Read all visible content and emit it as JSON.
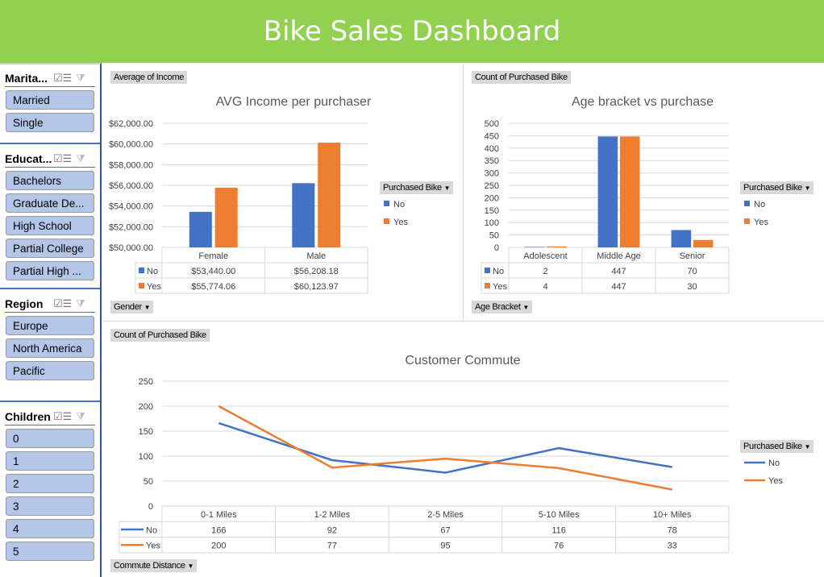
{
  "header": {
    "title": "Bike Sales Dashboard"
  },
  "slicers": [
    {
      "title": "Marita...",
      "items": [
        "Married",
        "Single"
      ]
    },
    {
      "title": "Educat...",
      "items": [
        "Bachelors",
        "Graduate De...",
        "High School",
        "Partial College",
        "Partial High ..."
      ]
    },
    {
      "title": "Region",
      "items": [
        "Europe",
        "North America",
        "Pacific"
      ]
    },
    {
      "title": "Children",
      "items": [
        "0",
        "1",
        "2",
        "3",
        "4",
        "5"
      ]
    }
  ],
  "icons": {
    "multiselect": "multi-select-icon",
    "clear_filter": "clear-filter-icon",
    "dropdown": "dropdown-arrow-icon"
  },
  "colors": {
    "no": "#4472C4",
    "yes": "#ED7D31",
    "header": "#92D050"
  },
  "chart_data": [
    {
      "type": "bar",
      "title": "AVG Income per purchaser",
      "value_field": "Average of Income",
      "axis_field": "Gender",
      "legend_field": "Purchased Bike",
      "categories": [
        "Female",
        "Male"
      ],
      "series": [
        {
          "name": "No",
          "values": [
            53440.0,
            56208.18
          ],
          "labels": [
            "$53,440.00",
            "$56,208.18"
          ]
        },
        {
          "name": "Yes",
          "values": [
            55774.06,
            60123.97
          ],
          "labels": [
            "$55,774.06",
            "$60,123.97"
          ]
        }
      ],
      "ylim": [
        50000,
        62000
      ],
      "yticks": [
        "$50,000.00",
        "$52,000.00",
        "$54,000.00",
        "$56,000.00",
        "$58,000.00",
        "$60,000.00",
        "$62,000.00"
      ],
      "legend": "right"
    },
    {
      "type": "bar",
      "title": "Age bracket vs purchase",
      "value_field": "Count of Purchased Bike",
      "axis_field": "Age Bracket",
      "legend_field": "Purchased Bike",
      "categories": [
        "Adolescent",
        "Middle Age",
        "Senior"
      ],
      "series": [
        {
          "name": "No",
          "values": [
            2,
            447,
            70
          ],
          "labels": [
            "2",
            "447",
            "70"
          ]
        },
        {
          "name": "Yes",
          "values": [
            4,
            447,
            30
          ],
          "labels": [
            "4",
            "447",
            "30"
          ]
        }
      ],
      "ylim": [
        0,
        500
      ],
      "yticks": [
        "0",
        "50",
        "100",
        "150",
        "200",
        "250",
        "300",
        "350",
        "400",
        "450",
        "500"
      ],
      "legend": "right"
    },
    {
      "type": "line",
      "title": "Customer Commute",
      "value_field": "Count of Purchased Bike",
      "axis_field": "Commute Distance",
      "legend_field": "Purchased Bike",
      "categories": [
        "0-1 Miles",
        "1-2 Miles",
        "2-5 Miles",
        "5-10 Miles",
        "10+ Miles"
      ],
      "series": [
        {
          "name": "No",
          "values": [
            166,
            92,
            67,
            116,
            78
          ],
          "labels": [
            "166",
            "92",
            "67",
            "116",
            "78"
          ]
        },
        {
          "name": "Yes",
          "values": [
            200,
            77,
            95,
            76,
            33
          ],
          "labels": [
            "200",
            "77",
            "95",
            "76",
            "33"
          ]
        }
      ],
      "ylim": [
        0,
        250
      ],
      "yticks": [
        "0",
        "50",
        "100",
        "150",
        "200",
        "250"
      ],
      "legend": "right"
    }
  ]
}
